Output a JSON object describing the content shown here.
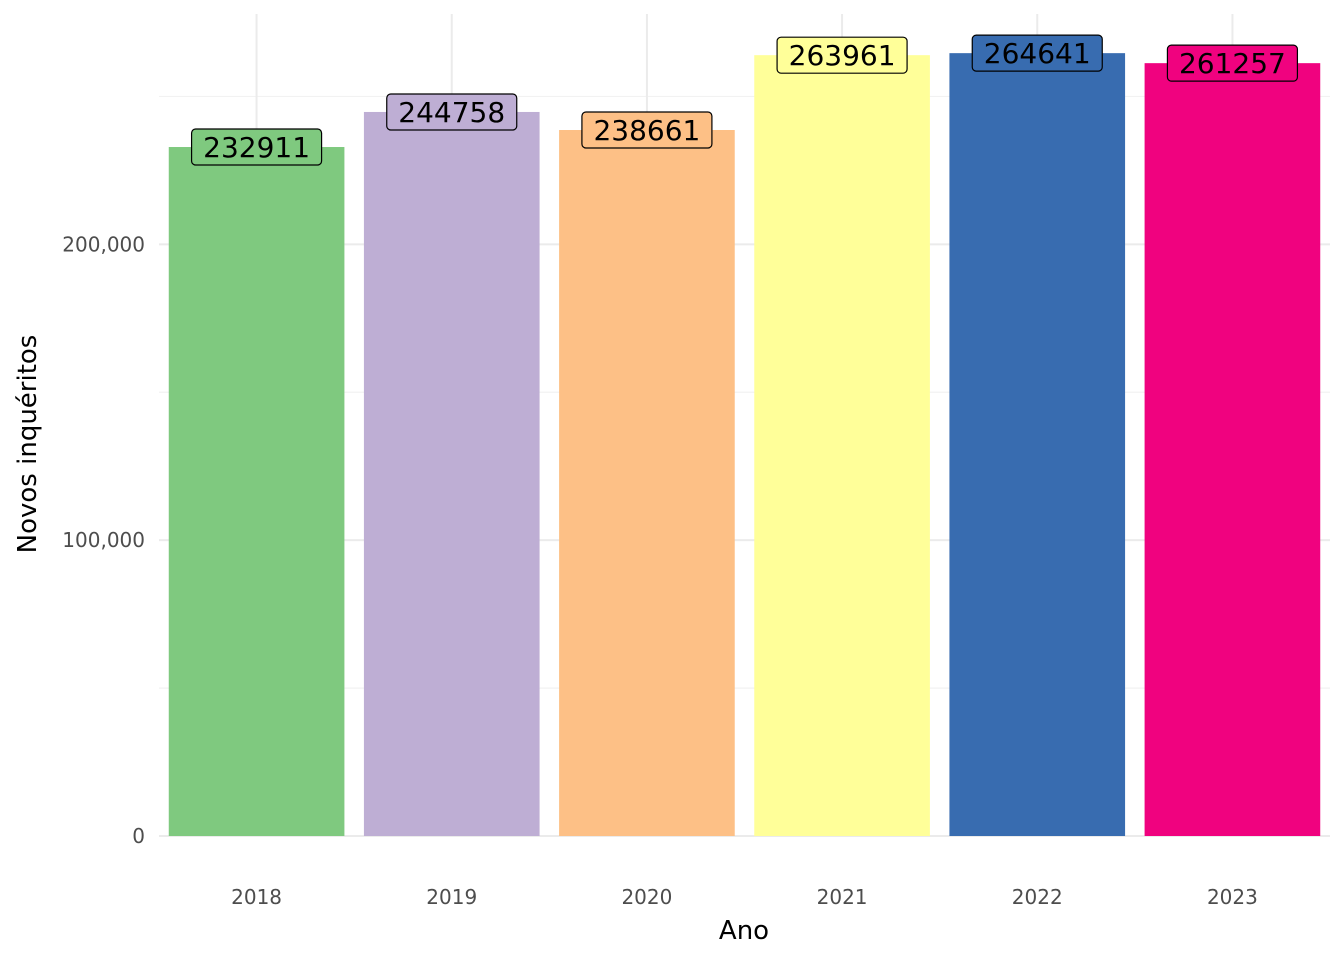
{
  "chart_data": {
    "type": "bar",
    "categories": [
      "2018",
      "2019",
      "2020",
      "2021",
      "2022",
      "2023"
    ],
    "values": [
      232911,
      244758,
      238661,
      263961,
      264641,
      261257
    ],
    "data_labels": [
      "232911",
      "244758",
      "238661",
      "263961",
      "264641",
      "261257"
    ],
    "colors": [
      "#7fc97f",
      "#beaed4",
      "#fdc086",
      "#ffff99",
      "#386cb0",
      "#f0027f"
    ],
    "title": "",
    "xlabel": "Ano",
    "ylabel": "Novos inquéritos",
    "ylim": [
      0,
      277876
    ],
    "yticks": [
      0,
      100000,
      200000
    ],
    "ytick_labels": [
      "0",
      "100,000",
      "200,000"
    ],
    "grid": true,
    "legend": "none"
  }
}
